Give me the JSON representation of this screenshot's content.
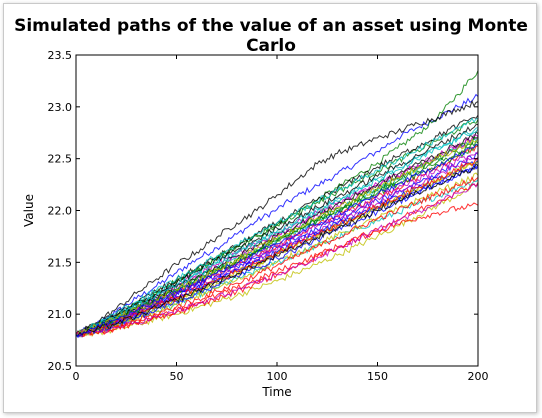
{
  "chart_data": {
    "type": "line",
    "title": "Simulated paths of the value of an asset using Monte Carlo",
    "xlabel": "Time",
    "ylabel": "Value",
    "xlim": [
      0,
      200
    ],
    "ylim": [
      20.5,
      23.5
    ],
    "xticks": [
      "0",
      "50",
      "100",
      "150",
      "200"
    ],
    "yticks": [
      "20.5",
      "21.0",
      "21.5",
      "22.0",
      "22.5",
      "23.0",
      "23.5"
    ],
    "grid": false,
    "legend": "none",
    "start_value": 20.8,
    "x": [
      0,
      10,
      20,
      30,
      40,
      50,
      60,
      70,
      80,
      90,
      100,
      110,
      120,
      130,
      140,
      150,
      160,
      170,
      180,
      190,
      200
    ],
    "series_colors": [
      "#0000ff",
      "#008000",
      "#ff0000",
      "#00bfbf",
      "#bf00bf",
      "#bfbf00",
      "#000000"
    ],
    "series": [
      {
        "values": [
          20.8,
          20.9,
          21.02,
          21.15,
          21.27,
          21.4,
          21.53,
          21.64,
          21.77,
          21.9,
          22.01,
          22.14,
          22.24,
          22.35,
          22.46,
          22.57,
          22.7,
          22.8,
          22.9,
          23.0,
          23.1
        ]
      },
      {
        "values": [
          20.8,
          20.88,
          20.98,
          21.08,
          21.2,
          21.3,
          21.42,
          21.53,
          21.65,
          21.75,
          21.86,
          21.98,
          22.1,
          22.22,
          22.34,
          22.46,
          22.6,
          22.74,
          22.9,
          23.12,
          23.35
        ]
      },
      {
        "values": [
          20.8,
          20.86,
          20.94,
          21.03,
          21.12,
          21.2,
          21.3,
          21.38,
          21.48,
          21.57,
          21.66,
          21.76,
          21.86,
          21.95,
          22.04,
          22.14,
          22.22,
          22.32,
          22.42,
          22.52,
          22.62
        ]
      },
      {
        "values": [
          20.8,
          20.84,
          20.9,
          20.96,
          21.03,
          21.1,
          21.18,
          21.26,
          21.34,
          21.42,
          21.5,
          21.58,
          21.66,
          21.74,
          21.82,
          21.9,
          21.98,
          22.06,
          22.14,
          22.22,
          22.3
        ]
      },
      {
        "values": [
          20.8,
          20.87,
          20.96,
          21.05,
          21.15,
          21.25,
          21.35,
          21.45,
          21.55,
          21.65,
          21.75,
          21.85,
          21.95,
          22.05,
          22.14,
          22.24,
          22.33,
          22.43,
          22.52,
          22.62,
          22.72
        ]
      },
      {
        "values": [
          20.8,
          20.82,
          20.85,
          20.9,
          20.95,
          21.0,
          21.06,
          21.12,
          21.18,
          21.25,
          21.32,
          21.4,
          21.48,
          21.57,
          21.66,
          21.75,
          21.85,
          21.95,
          22.05,
          22.15,
          22.25
        ]
      },
      {
        "values": [
          20.8,
          20.92,
          21.05,
          21.2,
          21.34,
          21.48,
          21.6,
          21.74,
          21.88,
          22.0,
          22.15,
          22.3,
          22.45,
          22.55,
          22.62,
          22.7,
          22.76,
          22.84,
          22.9,
          22.98,
          23.05
        ]
      },
      {
        "values": [
          20.8,
          20.85,
          20.92,
          21.0,
          21.08,
          21.17,
          21.25,
          21.34,
          21.43,
          21.52,
          21.6,
          21.7,
          21.78,
          21.86,
          21.94,
          22.02,
          22.1,
          22.18,
          22.26,
          22.34,
          22.42
        ]
      },
      {
        "values": [
          20.8,
          20.89,
          20.99,
          21.1,
          21.21,
          21.32,
          21.43,
          21.54,
          21.65,
          21.76,
          21.86,
          21.97,
          22.08,
          22.18,
          22.28,
          22.38,
          22.48,
          22.58,
          22.68,
          22.78,
          22.88
        ]
      },
      {
        "values": [
          20.8,
          20.83,
          20.87,
          20.92,
          20.98,
          21.04,
          21.11,
          21.18,
          21.25,
          21.33,
          21.41,
          21.49,
          21.57,
          21.65,
          21.73,
          21.8,
          21.87,
          21.93,
          21.98,
          22.02,
          22.05
        ]
      },
      {
        "values": [
          20.8,
          20.86,
          20.95,
          21.04,
          21.14,
          21.24,
          21.34,
          21.44,
          21.53,
          21.62,
          21.72,
          21.81,
          21.9,
          22.0,
          22.1,
          22.2,
          22.3,
          22.4,
          22.5,
          22.6,
          22.7
        ]
      },
      {
        "values": [
          20.8,
          20.88,
          20.97,
          21.07,
          21.18,
          21.28,
          21.38,
          21.48,
          21.58,
          21.68,
          21.78,
          21.88,
          21.98,
          22.07,
          22.16,
          22.25,
          22.34,
          22.44,
          22.53,
          22.62,
          22.72
        ]
      },
      {
        "values": [
          20.8,
          20.84,
          20.89,
          20.95,
          21.02,
          21.09,
          21.17,
          21.25,
          21.33,
          21.42,
          21.5,
          21.59,
          21.67,
          21.76,
          21.84,
          21.93,
          22.01,
          22.1,
          22.18,
          22.26,
          22.34
        ]
      },
      {
        "values": [
          20.8,
          20.9,
          21.0,
          21.11,
          21.22,
          21.33,
          21.44,
          21.55,
          21.66,
          21.77,
          21.88,
          21.99,
          22.1,
          22.21,
          22.31,
          22.42,
          22.52,
          22.62,
          22.72,
          22.82,
          22.92
        ]
      },
      {
        "values": [
          20.8,
          20.85,
          20.93,
          21.01,
          21.1,
          21.19,
          21.28,
          21.37,
          21.46,
          21.55,
          21.64,
          21.73,
          21.82,
          21.91,
          22.0,
          22.09,
          22.18,
          22.27,
          22.36,
          22.45,
          22.54
        ]
      },
      {
        "values": [
          20.8,
          20.87,
          20.94,
          21.02,
          21.11,
          21.21,
          21.3,
          21.4,
          21.5,
          21.6,
          21.7,
          21.8,
          21.9,
          21.99,
          22.08,
          22.17,
          22.26,
          22.35,
          22.44,
          22.53,
          22.62
        ]
      },
      {
        "values": [
          20.8,
          20.83,
          20.88,
          20.94,
          21.0,
          21.07,
          21.14,
          21.22,
          21.3,
          21.38,
          21.47,
          21.56,
          21.65,
          21.74,
          21.83,
          21.92,
          22.0,
          22.08,
          22.16,
          22.24,
          22.32
        ]
      },
      {
        "values": [
          20.8,
          20.88,
          20.98,
          21.08,
          21.18,
          21.29,
          21.39,
          21.5,
          21.6,
          21.7,
          21.8,
          21.91,
          22.01,
          22.11,
          22.21,
          22.31,
          22.41,
          22.51,
          22.6,
          22.7,
          22.8
        ]
      },
      {
        "values": [
          20.8,
          20.86,
          20.93,
          21.01,
          21.09,
          21.17,
          21.26,
          21.35,
          21.44,
          21.53,
          21.62,
          21.71,
          21.8,
          21.89,
          21.98,
          22.07,
          22.16,
          22.25,
          22.34,
          22.43,
          22.52
        ]
      },
      {
        "values": [
          20.8,
          20.84,
          20.91,
          20.98,
          21.06,
          21.14,
          21.23,
          21.31,
          21.4,
          21.49,
          21.58,
          21.67,
          21.76,
          21.85,
          21.94,
          22.03,
          22.12,
          22.21,
          22.3,
          22.39,
          22.48
        ]
      },
      {
        "values": [
          20.8,
          20.89,
          20.99,
          21.09,
          21.19,
          21.3,
          21.41,
          21.52,
          21.62,
          21.72,
          21.83,
          21.93,
          22.03,
          22.13,
          22.23,
          22.33,
          22.43,
          22.53,
          22.63,
          22.73,
          22.83
        ]
      },
      {
        "values": [
          20.8,
          20.85,
          20.92,
          20.99,
          21.07,
          21.16,
          21.25,
          21.33,
          21.42,
          21.51,
          21.6,
          21.69,
          21.78,
          21.87,
          21.95,
          22.04,
          22.13,
          22.22,
          22.31,
          22.39,
          22.48
        ]
      },
      {
        "values": [
          20.8,
          20.87,
          20.96,
          21.05,
          21.14,
          21.23,
          21.32,
          21.42,
          21.52,
          21.61,
          21.71,
          21.8,
          21.9,
          22.0,
          22.09,
          22.19,
          22.28,
          22.38,
          22.47,
          22.56,
          22.65
        ]
      },
      {
        "values": [
          20.8,
          20.82,
          20.86,
          20.91,
          20.96,
          21.02,
          21.08,
          21.15,
          21.22,
          21.3,
          21.38,
          21.46,
          21.55,
          21.64,
          21.73,
          21.82,
          21.91,
          22.0,
          22.09,
          22.18,
          22.27
        ]
      },
      {
        "values": [
          20.8,
          20.9,
          21.01,
          21.12,
          21.23,
          21.34,
          21.45,
          21.56,
          21.67,
          21.78,
          21.88,
          21.98,
          22.09,
          22.19,
          22.29,
          22.39,
          22.49,
          22.59,
          22.69,
          22.79,
          22.89
        ]
      },
      {
        "values": [
          20.8,
          20.86,
          20.94,
          21.03,
          21.12,
          21.21,
          21.3,
          21.39,
          21.48,
          21.57,
          21.67,
          21.76,
          21.85,
          21.94,
          22.03,
          22.12,
          22.21,
          22.3,
          22.39,
          22.48,
          22.57
        ]
      },
      {
        "values": [
          20.8,
          20.85,
          20.9,
          20.97,
          21.05,
          21.13,
          21.21,
          21.3,
          21.39,
          21.48,
          21.57,
          21.66,
          21.75,
          21.84,
          21.93,
          22.02,
          22.11,
          22.2,
          22.29,
          22.38,
          22.47
        ]
      },
      {
        "values": [
          20.8,
          20.88,
          20.97,
          21.06,
          21.16,
          21.26,
          21.36,
          21.46,
          21.56,
          21.66,
          21.76,
          21.86,
          21.96,
          22.06,
          22.15,
          22.25,
          22.35,
          22.45,
          22.54,
          22.64,
          22.74
        ]
      },
      {
        "values": [
          20.8,
          20.84,
          20.9,
          20.97,
          21.04,
          21.12,
          21.2,
          21.28,
          21.37,
          21.45,
          21.54,
          21.63,
          21.72,
          21.81,
          21.9,
          21.99,
          22.08,
          22.17,
          22.26,
          22.35,
          22.44
        ]
      },
      {
        "values": [
          20.8,
          20.87,
          20.95,
          21.04,
          21.13,
          21.23,
          21.33,
          21.43,
          21.52,
          21.62,
          21.72,
          21.82,
          21.92,
          22.02,
          22.11,
          22.21,
          22.31,
          22.41,
          22.5,
          22.6,
          22.7
        ]
      },
      {
        "values": [
          20.8,
          20.86,
          20.93,
          21.0,
          21.08,
          21.16,
          21.24,
          21.33,
          21.41,
          21.5,
          21.59,
          21.68,
          21.77,
          21.86,
          21.95,
          22.04,
          22.13,
          22.22,
          22.31,
          22.4,
          22.49
        ]
      },
      {
        "values": [
          20.8,
          20.89,
          20.98,
          21.08,
          21.18,
          21.28,
          21.38,
          21.49,
          21.59,
          21.69,
          21.79,
          21.89,
          21.99,
          22.09,
          22.19,
          22.29,
          22.39,
          22.49,
          22.59,
          22.69,
          22.79
        ]
      },
      {
        "values": [
          20.8,
          20.83,
          20.87,
          20.92,
          20.97,
          21.03,
          21.09,
          21.16,
          21.23,
          21.3,
          21.38,
          21.46,
          21.54,
          21.63,
          21.72,
          21.81,
          21.9,
          21.99,
          22.08,
          22.17,
          22.26
        ]
      },
      {
        "values": [
          20.8,
          20.88,
          20.96,
          21.05,
          21.14,
          21.24,
          21.33,
          21.43,
          21.53,
          21.63,
          21.73,
          21.83,
          21.93,
          22.03,
          22.12,
          22.22,
          22.32,
          22.41,
          22.51,
          22.6,
          22.69
        ]
      },
      {
        "values": [
          20.8,
          20.85,
          20.91,
          20.98,
          21.06,
          21.14,
          21.22,
          21.31,
          21.39,
          21.48,
          21.56,
          21.65,
          21.74,
          21.83,
          21.91,
          22.0,
          22.09,
          22.17,
          22.26,
          22.35,
          22.43
        ]
      },
      {
        "values": [
          20.8,
          20.87,
          20.95,
          21.03,
          21.12,
          21.21,
          21.3,
          21.39,
          21.49,
          21.58,
          21.68,
          21.77,
          21.87,
          21.96,
          22.06,
          22.15,
          22.25,
          22.34,
          22.44,
          22.53,
          22.63
        ]
      }
    ]
  }
}
